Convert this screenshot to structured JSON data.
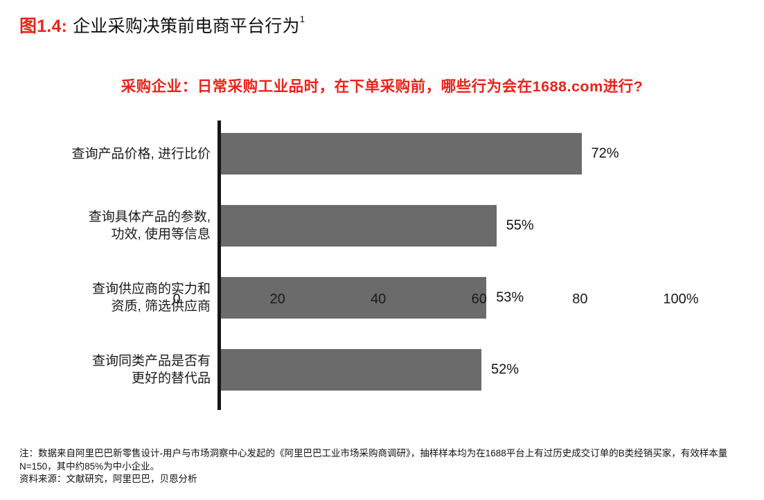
{
  "figure": {
    "label": "图1.4:",
    "title": "企业采购决策前电商平台行为",
    "superscript": "1"
  },
  "question": "采购企业：日常采购工业品时，在下单采购前，哪些行为会在1688.com进行?",
  "chart_data": {
    "type": "bar",
    "orientation": "horizontal",
    "title": "采购企业：日常采购工业品时，在下单采购前，哪些行为会在1688.com进行?",
    "categories": [
      "查询产品价格, 进行比价",
      "查询具体产品的参数, 功效, 使用等信息",
      "查询供应商的实力和资质, 筛选供应商",
      "查询同类产品是否有更好的替代品"
    ],
    "category_lines": [
      [
        "查询产品价格, 进行比价"
      ],
      [
        "查询具体产品的参数,",
        "功效, 使用等信息"
      ],
      [
        "查询供应商的实力和",
        "资质, 筛选供应商"
      ],
      [
        "查询同类产品是否有",
        "更好的替代品"
      ]
    ],
    "values": [
      72,
      55,
      53,
      52
    ],
    "value_labels": [
      "72%",
      "55%",
      "53%",
      "52%"
    ],
    "x_ticks": [
      {
        "value": 0,
        "label": "0"
      },
      {
        "value": 20,
        "label": "20"
      },
      {
        "value": 40,
        "label": "40"
      },
      {
        "value": 60,
        "label": "60"
      },
      {
        "value": 80,
        "label": "80"
      },
      {
        "value": 100,
        "label": "100%"
      }
    ],
    "xlim": [
      0,
      100
    ],
    "bar_color": "#6B6B6B",
    "axis_color": "#151515",
    "grid": false,
    "legend": false
  },
  "notes": {
    "note": "注：数据来自阿里巴巴新零售设计-用户与市场洞察中心发起的《阿里巴巴工业市场采购商调研》，抽样样本均为在1688平台上有过历史成交订单的B类经销买家，有效样本量N=150，其中约85%为中小企业。",
    "source": "资料来源：文献研究，阿里巴巴，贝恩分析"
  },
  "colors": {
    "accent_red": "#ED2219",
    "bar_gray": "#6B6B6B",
    "axis_black": "#151515"
  }
}
